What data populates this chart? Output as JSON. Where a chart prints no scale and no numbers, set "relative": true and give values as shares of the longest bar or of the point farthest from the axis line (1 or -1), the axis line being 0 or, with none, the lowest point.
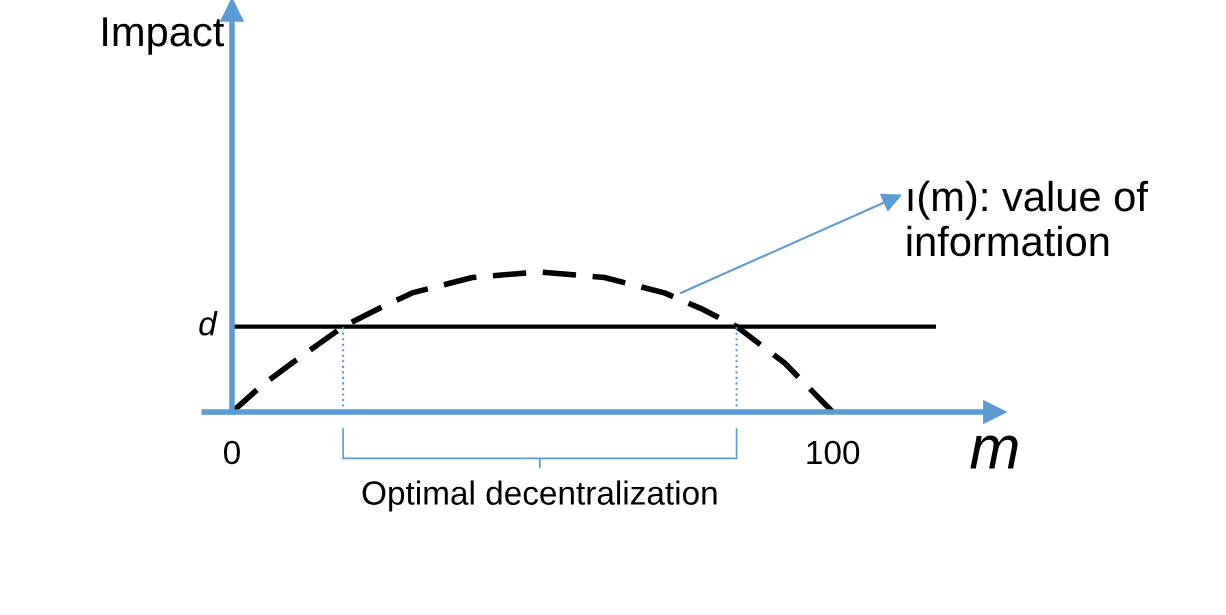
{
  "chart_data": {
    "type": "line",
    "relative": true,
    "xlabel": "m",
    "x": [
      0,
      5,
      10,
      18.5,
      25,
      30,
      40,
      51,
      62,
      72,
      78,
      84,
      92,
      100
    ],
    "series": [
      {
        "color": "#000000",
        "values": [
          0,
          0.19,
          0.35,
          0.61,
          0.75,
          0.85,
          0.96,
          1,
          0.96,
          0.85,
          0.74,
          0.61,
          0.35,
          0
        ]
      }
    ],
    "line_style": "dashed",
    "marker": "none",
    "grid": false,
    "xlim": [
      0,
      127
    ],
    "xticks": [
      0,
      100
    ],
    "ref_lines": [
      {
        "axis": "y",
        "value": 0.61,
        "label": "d",
        "color": "#000000",
        "line_style": "solid"
      },
      {
        "axis": "x",
        "value": 18.5,
        "color": "#5b9bd5",
        "line_style": "dotted"
      },
      {
        "axis": "x",
        "value": 84,
        "color": "#5b9bd5",
        "line_style": "dotted"
      }
    ],
    "annotations": [
      "Impact",
      {
        "text": "ı(m): value of information",
        "x": 74.7,
        "y": 0.85
      },
      "Optimal decentralization"
    ]
  }
}
